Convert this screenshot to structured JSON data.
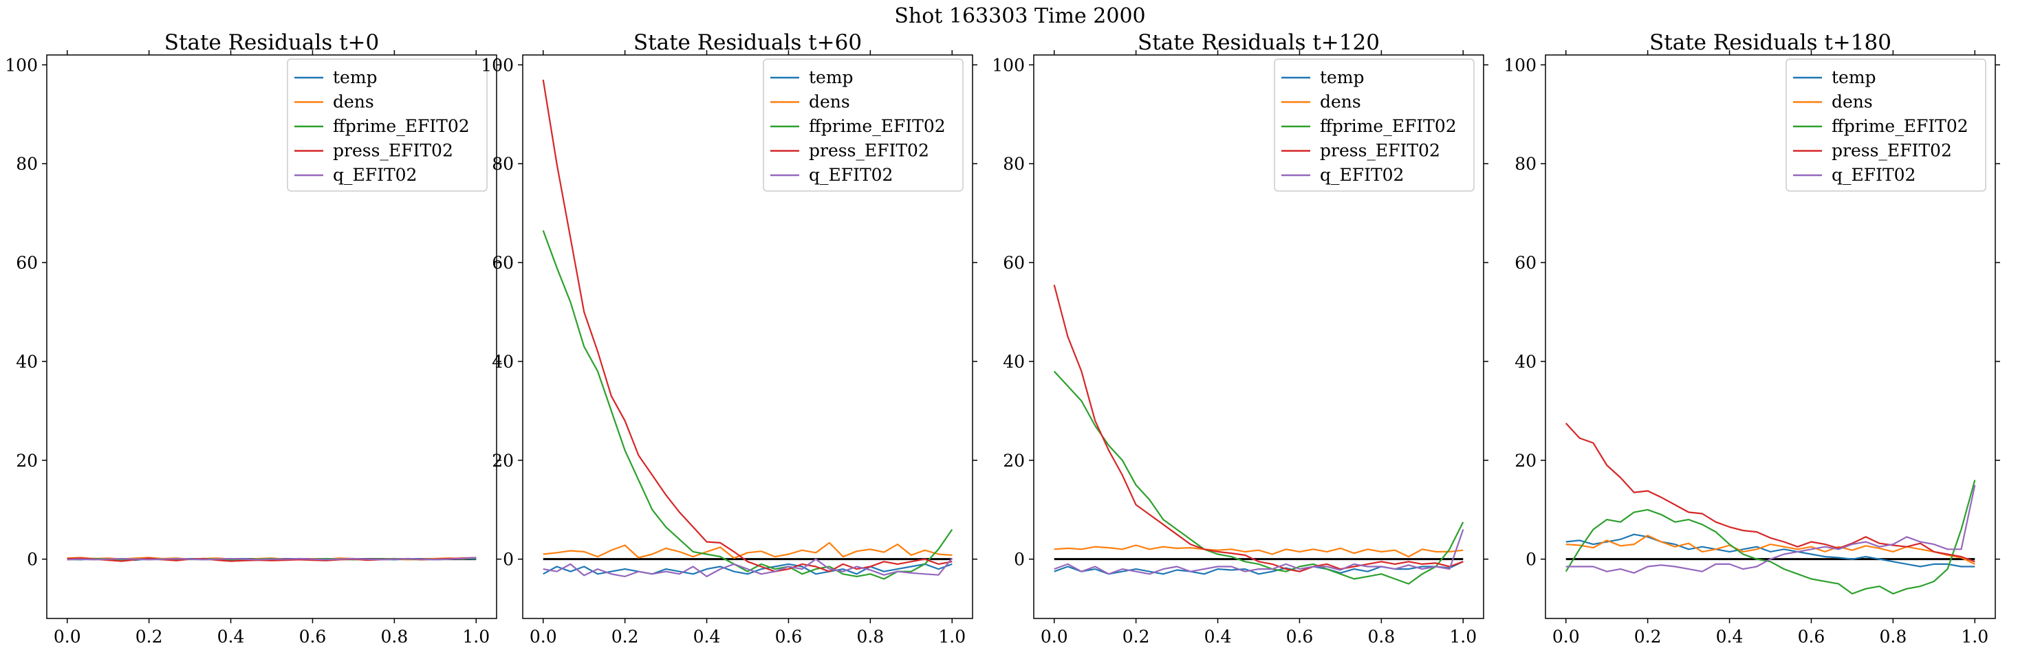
{
  "figure": {
    "suptitle": "Shot 163303   Time 2000"
  },
  "chart_data": [
    {
      "type": "line",
      "title": "State Residuals t+0",
      "xlim": [
        -0.05,
        1.05
      ],
      "ylim": [
        -12,
        102
      ],
      "xticks": [
        "0.0",
        "0.2",
        "0.4",
        "0.6",
        "0.8",
        "1.0"
      ],
      "yticks": [
        "0",
        "20",
        "40",
        "60",
        "80",
        "100"
      ],
      "legend": "top-right",
      "grid": false,
      "zero_line": true,
      "x": [
        0,
        0.0333,
        0.0667,
        0.1,
        0.1333,
        0.1667,
        0.2,
        0.2333,
        0.2667,
        0.3,
        0.3333,
        0.3667,
        0.4,
        0.4333,
        0.4667,
        0.5,
        0.5333,
        0.5667,
        0.6,
        0.6333,
        0.6667,
        0.7,
        0.7333,
        0.7667,
        0.8,
        0.8333,
        0.8667,
        0.9,
        0.9333,
        0.9667,
        1.0
      ],
      "series": [
        {
          "name": "temp",
          "color": "#1f77b4",
          "values": [
            0,
            -0.1,
            0.1,
            -0.1,
            0,
            -0.2,
            0.1,
            -0.1,
            0,
            0.1,
            -0.1,
            0,
            -0.1,
            0.1,
            -0.1,
            0,
            -0.1,
            0.1,
            0,
            -0.1,
            0,
            0.1,
            -0.1,
            0,
            -0.1,
            0.1,
            0,
            -0.1,
            0,
            0.1,
            0
          ]
        },
        {
          "name": "dens",
          "color": "#ff7f0e",
          "values": [
            0.2,
            0.3,
            0.1,
            0.2,
            0,
            0.2,
            0.3,
            0.1,
            0.2,
            0,
            0.1,
            0.2,
            0,
            -0.1,
            0.1,
            0.2,
            0,
            -0.1,
            0.1,
            0,
            0.2,
            0.1,
            -0.1,
            0,
            0.1,
            -0.1,
            0,
            0.1,
            0.2,
            0.1,
            0.3
          ]
        },
        {
          "name": "ffprime_EFIT02",
          "color": "#2ca02c",
          "values": [
            -0.1,
            0,
            0.1,
            0,
            -0.1,
            0,
            0.1,
            0,
            -0.1,
            0,
            0.1,
            0,
            -0.1,
            0,
            0,
            0.1,
            0,
            -0.1,
            0,
            0.1,
            0,
            -0.1,
            0,
            0,
            0.1,
            0,
            -0.1,
            0,
            0.1,
            0,
            0.2
          ]
        },
        {
          "name": "press_EFIT02",
          "color": "#d62728",
          "values": [
            0.1,
            0.2,
            0,
            -0.2,
            -0.4,
            -0.1,
            0.2,
            -0.1,
            -0.3,
            0,
            0.1,
            -0.2,
            -0.4,
            -0.3,
            -0.2,
            -0.3,
            -0.2,
            -0.1,
            -0.2,
            -0.3,
            -0.1,
            0,
            -0.2,
            -0.1,
            0,
            0.1,
            -0.1,
            0,
            0.1,
            0.2,
            0.3
          ]
        },
        {
          "name": "q_EFIT02",
          "color": "#9467bd",
          "values": [
            -0.1,
            0,
            -0.1,
            0,
            0.1,
            0,
            -0.1,
            0,
            0.1,
            0,
            -0.1,
            0,
            0.1,
            0,
            -0.1,
            0,
            0,
            0.1,
            0,
            -0.1,
            0,
            0.1,
            0,
            -0.1,
            0,
            0.1,
            0,
            -0.1,
            0,
            0.1,
            0.3
          ]
        }
      ]
    },
    {
      "type": "line",
      "title": "State Residuals t+60",
      "xlim": [
        -0.05,
        1.05
      ],
      "ylim": [
        -12,
        102
      ],
      "xticks": [
        "0.0",
        "0.2",
        "0.4",
        "0.6",
        "0.8",
        "1.0"
      ],
      "yticks": [
        "0",
        "20",
        "40",
        "60",
        "80",
        "100"
      ],
      "legend": "top-right",
      "grid": false,
      "zero_line": true,
      "x": [
        0,
        0.0333,
        0.0667,
        0.1,
        0.1333,
        0.1667,
        0.2,
        0.2333,
        0.2667,
        0.3,
        0.3333,
        0.3667,
        0.4,
        0.4333,
        0.4667,
        0.5,
        0.5333,
        0.5667,
        0.6,
        0.6333,
        0.6667,
        0.7,
        0.7333,
        0.7667,
        0.8,
        0.8333,
        0.8667,
        0.9,
        0.9333,
        0.9667,
        1.0
      ],
      "series": [
        {
          "name": "temp",
          "color": "#1f77b4",
          "values": [
            -3,
            -1.5,
            -2.5,
            -1.5,
            -3,
            -2.5,
            -2,
            -2.5,
            -3,
            -2,
            -2.5,
            -3,
            -2,
            -1.5,
            -2.5,
            -3,
            -2,
            -1.5,
            -1,
            -1.5,
            -3,
            -2.5,
            -2,
            -3,
            -1.5,
            -2.5,
            -2,
            -1.5,
            -1,
            -2,
            -1
          ]
        },
        {
          "name": "dens",
          "color": "#ff7f0e",
          "values": [
            1,
            1.3,
            1.7,
            1.5,
            0.5,
            1.8,
            2.8,
            0.3,
            1,
            2.2,
            1.5,
            0.5,
            1.5,
            2.4,
            0.2,
            1.3,
            1.6,
            0.5,
            1,
            1.8,
            1.3,
            3.3,
            0.5,
            1.6,
            2,
            1.4,
            3,
            0.8,
            1.8,
            1,
            0.8
          ]
        },
        {
          "name": "ffprime_EFIT02",
          "color": "#2ca02c",
          "values": [
            66.5,
            59,
            52,
            43,
            38,
            30,
            22,
            16,
            10,
            6.5,
            4,
            1.5,
            1,
            0.5,
            -1,
            -2.5,
            -1,
            -2,
            -1.5,
            -3,
            -2,
            -1.5,
            -3,
            -3.5,
            -3,
            -4,
            -2.5,
            -2.5,
            -1,
            2,
            6
          ]
        },
        {
          "name": "press_EFIT02",
          "color": "#d62728",
          "values": [
            97,
            80,
            65,
            50,
            42,
            33,
            28,
            21,
            17,
            13,
            9.5,
            6.5,
            3.5,
            3.3,
            1.5,
            -0.5,
            -1.5,
            -2.5,
            -2,
            -1,
            -1.5,
            -2.5,
            -1,
            -2,
            -1.5,
            -0.5,
            -1,
            -0.5,
            0,
            -1,
            -0.5
          ]
        },
        {
          "name": "q_EFIT02",
          "color": "#9467bd",
          "values": [
            -2,
            -2.5,
            -1,
            -3.3,
            -2,
            -3,
            -3.5,
            -2.5,
            -3,
            -2.5,
            -3,
            -1.5,
            -3.5,
            -2,
            -1,
            -2,
            -3,
            -2.5,
            -1.5,
            -2,
            0,
            -2,
            -2.5,
            -1.5,
            -2.2,
            -3.2,
            -2.5,
            -2.8,
            -3,
            -3.2,
            0.2
          ]
        }
      ]
    },
    {
      "type": "line",
      "title": "State Residuals t+120",
      "xlim": [
        -0.05,
        1.05
      ],
      "ylim": [
        -12,
        102
      ],
      "xticks": [
        "0.0",
        "0.2",
        "0.4",
        "0.6",
        "0.8",
        "1.0"
      ],
      "yticks": [
        "0",
        "20",
        "40",
        "60",
        "80",
        "100"
      ],
      "legend": "top-right",
      "grid": false,
      "zero_line": true,
      "x": [
        0,
        0.0333,
        0.0667,
        0.1,
        0.1333,
        0.1667,
        0.2,
        0.2333,
        0.2667,
        0.3,
        0.3333,
        0.3667,
        0.4,
        0.4333,
        0.4667,
        0.5,
        0.5333,
        0.5667,
        0.6,
        0.6333,
        0.6667,
        0.7,
        0.7333,
        0.7667,
        0.8,
        0.8333,
        0.8667,
        0.9,
        0.9333,
        0.9667,
        1.0
      ],
      "series": [
        {
          "name": "temp",
          "color": "#1f77b4",
          "values": [
            -2.5,
            -1.5,
            -2.5,
            -2,
            -3,
            -2.5,
            -2,
            -2.5,
            -3,
            -2.2,
            -2.5,
            -3,
            -2,
            -2.2,
            -2,
            -3,
            -2.5,
            -1.8,
            -2.5,
            -1.5,
            -2,
            -2.8,
            -2,
            -2.5,
            -1.5,
            -2,
            -2,
            -1.5,
            -1.5,
            -1.8,
            -0.5
          ]
        },
        {
          "name": "dens",
          "color": "#ff7f0e",
          "values": [
            2,
            2.2,
            2,
            2.5,
            2.3,
            2,
            2.8,
            2,
            2.5,
            2.2,
            2.3,
            2,
            1.8,
            2,
            1.5,
            1.8,
            1,
            2,
            1.5,
            2,
            1.5,
            2.2,
            1.2,
            2,
            1.5,
            1.8,
            0.5,
            2,
            1.5,
            1.5,
            1.8
          ]
        },
        {
          "name": "ffprime_EFIT02",
          "color": "#2ca02c",
          "values": [
            38,
            35,
            32,
            27,
            23,
            20,
            15,
            12,
            8,
            6,
            4,
            2,
            1,
            0.5,
            -0.5,
            -1,
            -2,
            -2.5,
            -1.5,
            -1,
            -2,
            -3,
            -4,
            -3.5,
            -3,
            -4,
            -5,
            -3,
            -1.5,
            2,
            7.5
          ]
        },
        {
          "name": "press_EFIT02",
          "color": "#d62728",
          "values": [
            55.5,
            45,
            38,
            28,
            22,
            17,
            11,
            9,
            7,
            5,
            3,
            2,
            1.5,
            1.2,
            0.8,
            -0.5,
            -1,
            -2,
            -2.5,
            -1.5,
            -1,
            -2,
            -1.5,
            -1,
            -0.5,
            -1,
            -0.5,
            -1,
            -0.8,
            -1.5,
            -0.5
          ]
        },
        {
          "name": "q_EFIT02",
          "color": "#9467bd",
          "values": [
            -2,
            -1,
            -2.5,
            -1.5,
            -3,
            -2,
            -2.5,
            -3,
            -2,
            -1.5,
            -2.5,
            -2,
            -1.5,
            -1.5,
            -2.5,
            -2,
            -2,
            -1,
            -2,
            -1.5,
            -1.5,
            -2.2,
            -1,
            -1.5,
            -1.5,
            -2,
            -1.2,
            -2,
            -1.5,
            -2,
            6
          ]
        }
      ]
    },
    {
      "type": "line",
      "title": "State Residuals t+180",
      "xlim": [
        -0.05,
        1.05
      ],
      "ylim": [
        -12,
        102
      ],
      "xticks": [
        "0.0",
        "0.2",
        "0.4",
        "0.6",
        "0.8",
        "1.0"
      ],
      "yticks": [
        "0",
        "20",
        "40",
        "60",
        "80",
        "100"
      ],
      "legend": "top-right",
      "grid": false,
      "zero_line": true,
      "x": [
        0,
        0.0333,
        0.0667,
        0.1,
        0.1333,
        0.1667,
        0.2,
        0.2333,
        0.2667,
        0.3,
        0.3333,
        0.3667,
        0.4,
        0.4333,
        0.4667,
        0.5,
        0.5333,
        0.5667,
        0.6,
        0.6333,
        0.6667,
        0.7,
        0.7333,
        0.7667,
        0.8,
        0.8333,
        0.8667,
        0.9,
        0.9333,
        0.9667,
        1.0
      ],
      "series": [
        {
          "name": "temp",
          "color": "#1f77b4",
          "values": [
            3.5,
            3.8,
            3,
            3.5,
            4,
            5,
            4.5,
            3.5,
            3,
            2,
            2.5,
            2,
            1.5,
            2,
            2.5,
            1.5,
            2,
            1.5,
            1,
            0.5,
            0.3,
            0,
            0.5,
            0,
            -0.5,
            -1,
            -1.5,
            -1,
            -1,
            -1.5,
            -1.5
          ]
        },
        {
          "name": "dens",
          "color": "#ff7f0e",
          "values": [
            3,
            2.8,
            2.3,
            3.8,
            2.7,
            3,
            4.8,
            3.5,
            2.5,
            3.2,
            1.5,
            2,
            2.8,
            1.5,
            2,
            3,
            2.5,
            2,
            2.5,
            1.5,
            2.5,
            1.8,
            2.7,
            2.2,
            1.5,
            2.5,
            2,
            1.5,
            0.8,
            0.3,
            -1
          ]
        },
        {
          "name": "ffprime_EFIT02",
          "color": "#2ca02c",
          "values": [
            -2.5,
            2,
            6,
            8,
            7.5,
            9.5,
            10,
            9,
            7.5,
            8,
            7,
            5.5,
            3,
            1,
            0,
            -0.5,
            -2,
            -3,
            -4,
            -4.5,
            -5,
            -7,
            -6,
            -5.5,
            -7,
            -6,
            -5.5,
            -4.5,
            -2,
            6,
            16
          ]
        },
        {
          "name": "press_EFIT02",
          "color": "#d62728",
          "values": [
            27.5,
            24.5,
            23.5,
            19,
            16.5,
            13.5,
            13.8,
            12.5,
            11,
            9.5,
            9.2,
            7.5,
            6.5,
            5.8,
            5.5,
            4.3,
            3.5,
            2.5,
            3.5,
            3,
            2.2,
            3.2,
            4.5,
            3.2,
            2.8,
            2.5,
            3.2,
            1.5,
            1,
            0.5,
            -0.5
          ]
        },
        {
          "name": "q_EFIT02",
          "color": "#9467bd",
          "values": [
            -1.5,
            -1.5,
            -1.5,
            -2.5,
            -2,
            -2.8,
            -1.5,
            -1.2,
            -1.5,
            -2,
            -2.5,
            -1,
            -1,
            -2,
            -1.5,
            0,
            1,
            1.5,
            2,
            2.5,
            2,
            3,
            3.5,
            2.5,
            3,
            4.5,
            3.5,
            3,
            2,
            2,
            15
          ]
        }
      ]
    }
  ]
}
